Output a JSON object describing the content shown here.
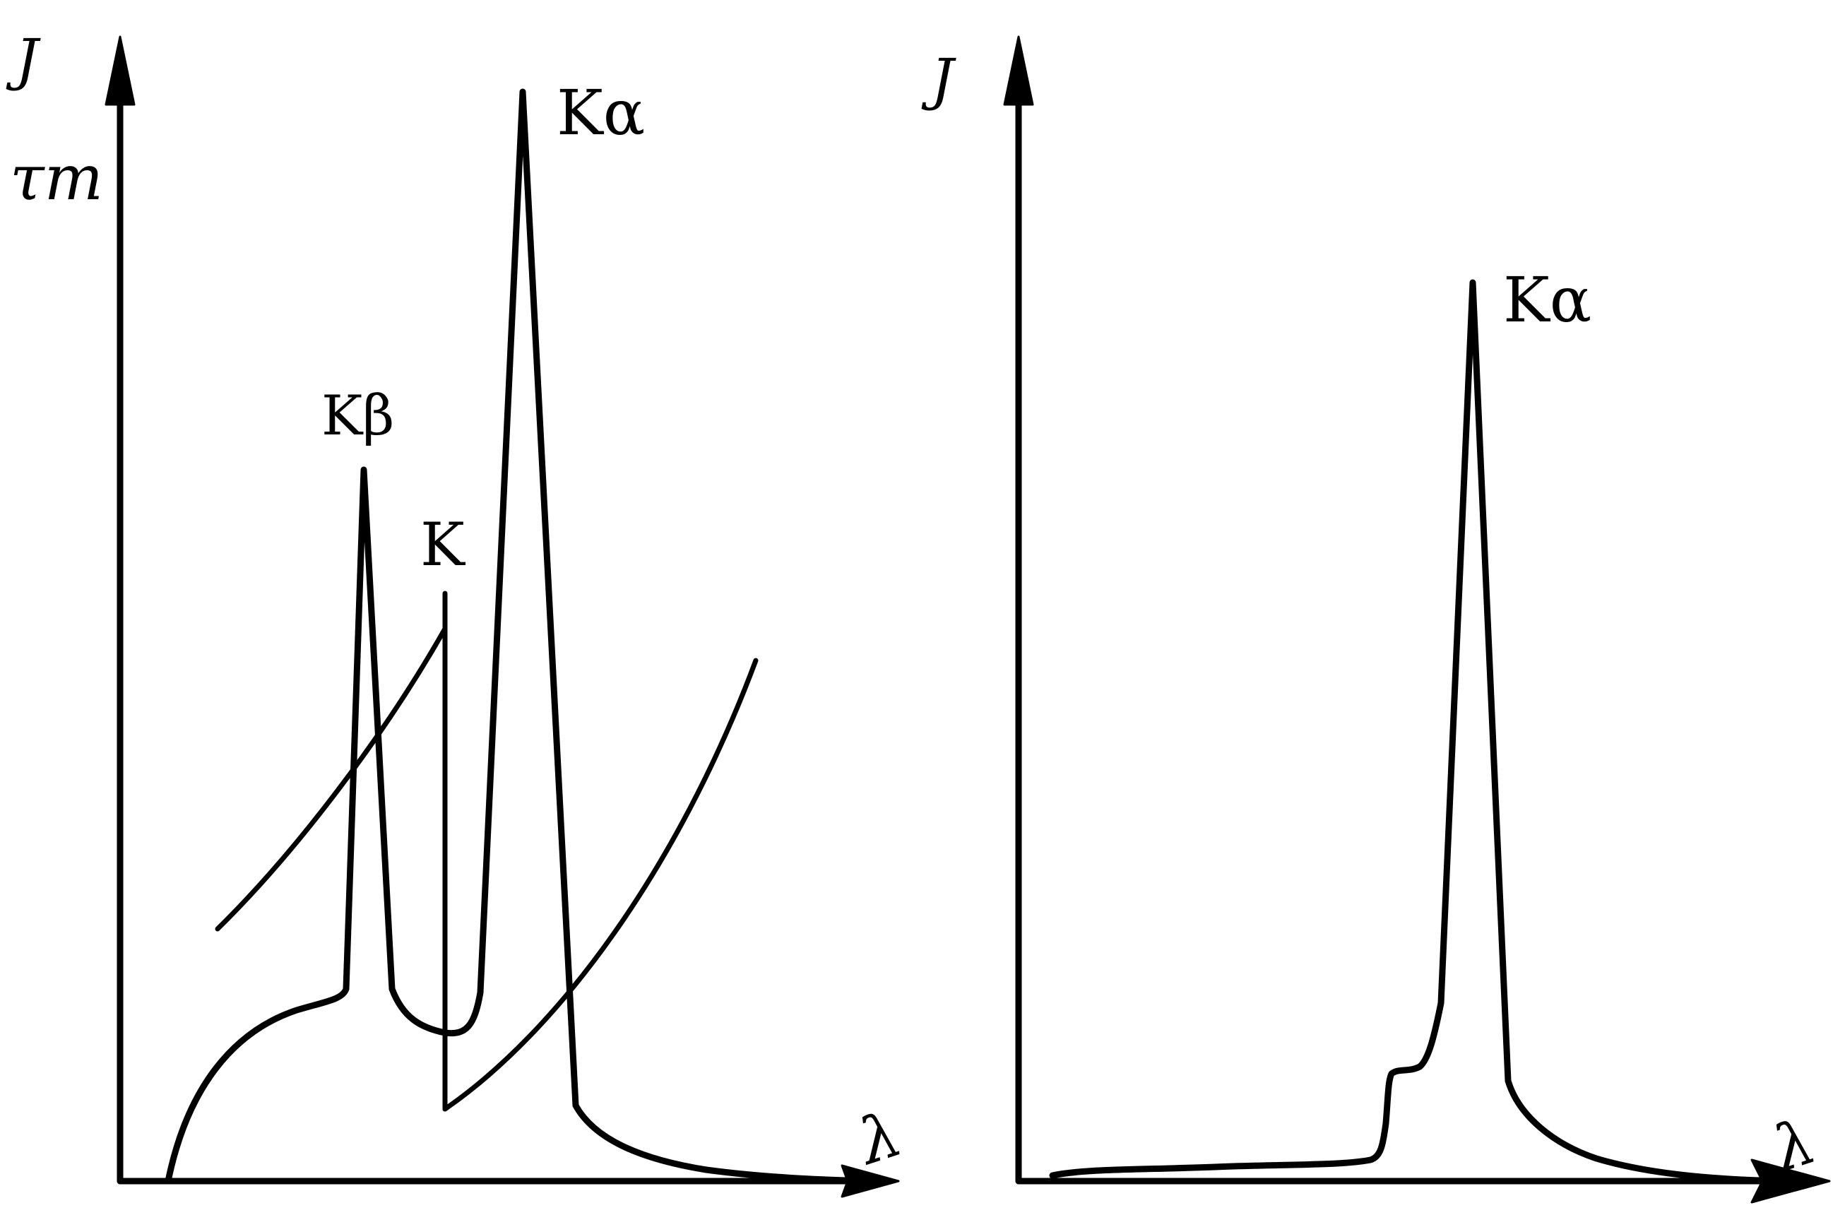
{
  "left_panel": {
    "y_axis_label_top": "J",
    "y_axis_label_bottom": "τm",
    "x_axis_label": "λ",
    "peak_k_beta": "Kβ",
    "edge_k": "K",
    "peak_k_alpha": "Kα"
  },
  "right_panel": {
    "y_axis_label": "J",
    "x_axis_label": "λ",
    "peak_k_alpha": "Kα"
  },
  "colors": {
    "ink": "#000000",
    "paper": "#ffffff"
  }
}
